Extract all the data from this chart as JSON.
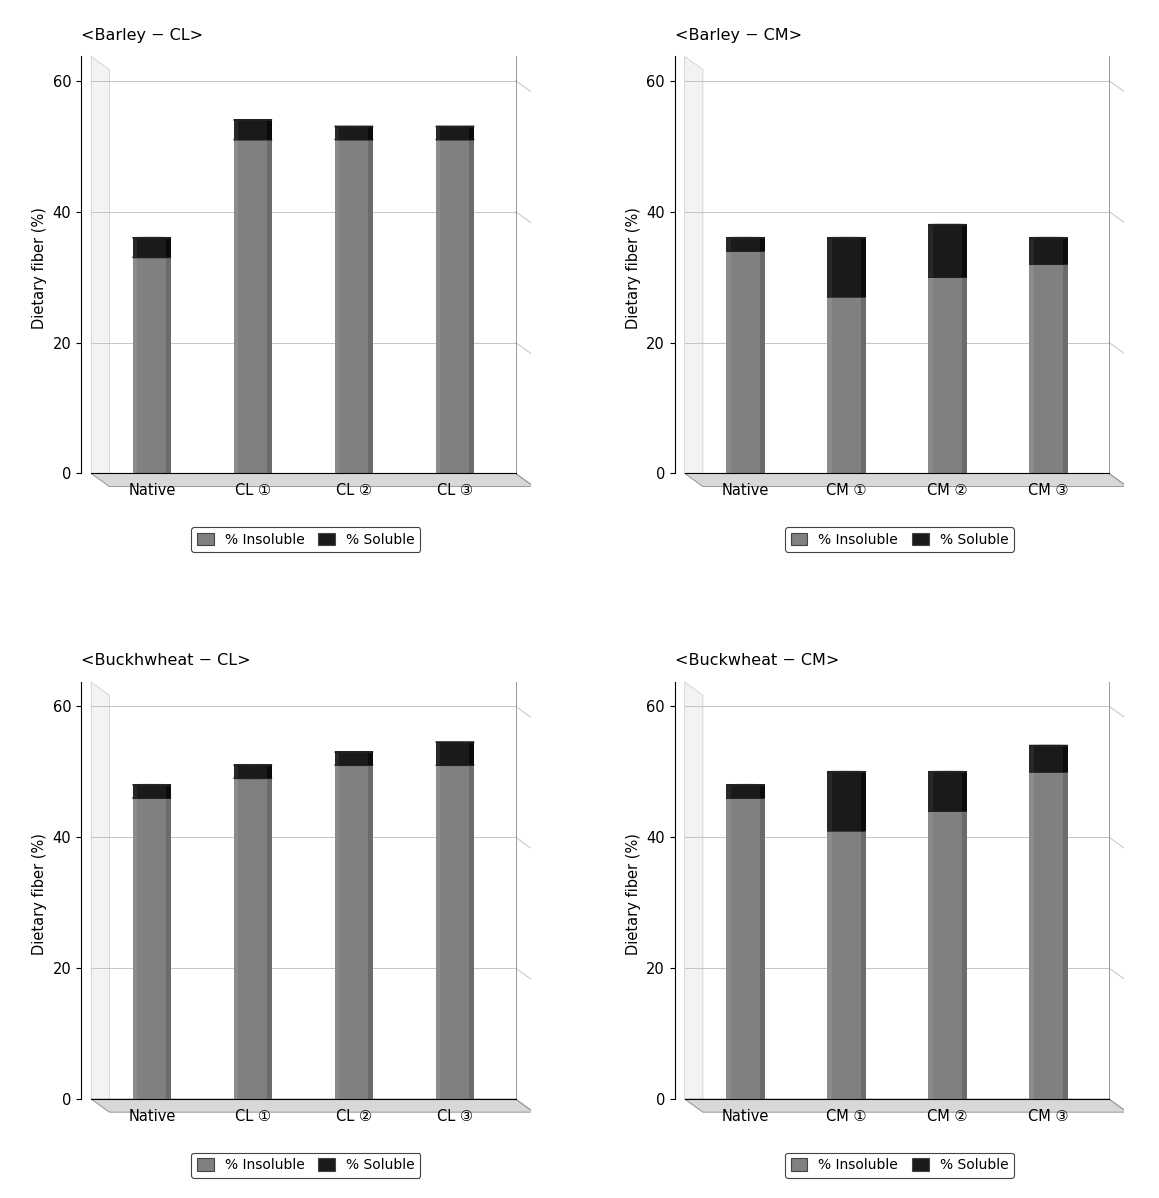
{
  "panels": [
    {
      "title": "<Barley − CL>",
      "categories": [
        "Native",
        "CL ①",
        "CL ②",
        "CL ③"
      ],
      "insoluble": [
        33.0,
        51.0,
        51.0,
        51.0
      ],
      "soluble": [
        3.0,
        3.0,
        2.0,
        2.0
      ],
      "ylim": [
        0,
        65
      ]
    },
    {
      "title": "<Barley − CM>",
      "categories": [
        "Native",
        "CM ①",
        "CM ②",
        "CM ③"
      ],
      "insoluble": [
        34.0,
        27.0,
        30.0,
        32.0
      ],
      "soluble": [
        2.0,
        9.0,
        8.0,
        4.0
      ],
      "ylim": [
        0,
        65
      ]
    },
    {
      "title": "<Buckhwheat − CL>",
      "categories": [
        "Native",
        "CL ①",
        "CL ②",
        "CL ③"
      ],
      "insoluble": [
        46.0,
        49.0,
        51.0,
        51.0
      ],
      "soluble": [
        2.0,
        2.0,
        2.0,
        3.5
      ],
      "ylim": [
        0,
        65
      ]
    },
    {
      "title": "<Buckwheat − CM>",
      "categories": [
        "Native",
        "CM ①",
        "CM ②",
        "CM ③"
      ],
      "insoluble": [
        46.0,
        41.0,
        44.0,
        50.0
      ],
      "soluble": [
        2.0,
        9.0,
        6.0,
        4.0
      ],
      "ylim": [
        0,
        65
      ]
    }
  ],
  "insoluble_color": "#808080",
  "insoluble_dark": "#5a5a5a",
  "insoluble_light": "#a0a0a0",
  "soluble_color": "#1a1a1a",
  "soluble_dark": "#000000",
  "soluble_light": "#444444",
  "bar_width": 0.38,
  "ellipse_ratio": 0.18,
  "ylabel": "Dietary fiber (%)",
  "legend_labels": [
    "% Insoluble",
    "% Soluble"
  ],
  "background_color": "#ffffff",
  "yticks": [
    0,
    20,
    40,
    60
  ],
  "floor_color": "#d8d8d8",
  "floor_edge_color": "#999999",
  "grid_color": "#bbbbbb"
}
